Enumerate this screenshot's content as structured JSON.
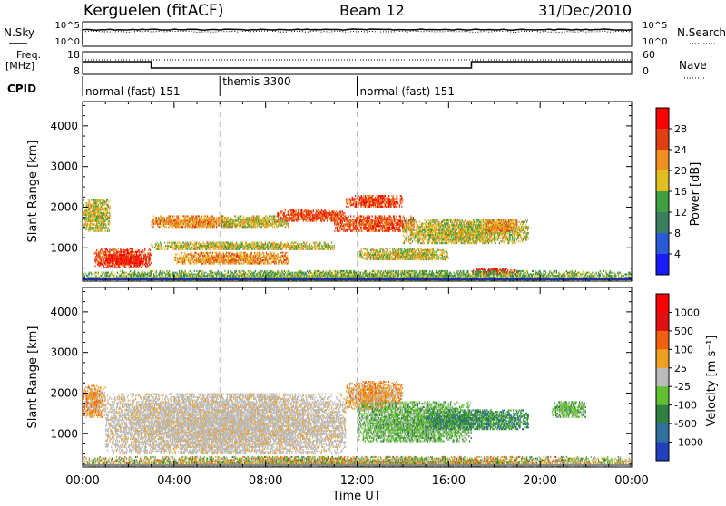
{
  "header": {
    "title": "Kerguelen (fitACF)",
    "beam": "Beam 12",
    "date": "31/Dec/2010"
  },
  "top_panels": {
    "nsky_label": "N.Sky",
    "nsearch_label": "N.Search",
    "freq_label_line1": "Freq.",
    "freq_label_line2": "[MHz]",
    "nave_label": "Nave",
    "cpid_label": "CPID",
    "left_ticks_noise": [
      "10^5",
      "10^0"
    ],
    "right_ticks_noise": [
      "10^5",
      "10^0"
    ],
    "left_ticks_freq": [
      "18",
      "8"
    ],
    "right_ticks_freq": [
      "60",
      "0"
    ]
  },
  "cpid_segments": [
    {
      "label": "normal (fast) 151",
      "start": 0,
      "end": 6
    },
    {
      "label": "themis 3300",
      "start": 6,
      "end": 12
    },
    {
      "label": "normal (fast) 151",
      "start": 12,
      "end": 24
    }
  ],
  "chart_data": [
    {
      "type": "heatmap",
      "panel": "power",
      "ylabel": "Slant Range [km]",
      "xlabel": "Time UT",
      "xlim": [
        0,
        24
      ],
      "ylim": [
        180,
        4600
      ],
      "x_tick_labels": [
        "00:00",
        "04:00",
        "08:00",
        "12:00",
        "16:00",
        "20:00",
        "00:00"
      ],
      "y_ticks": [
        1000,
        2000,
        3000,
        4000
      ],
      "colorbar": {
        "label": "Power [dB]",
        "ticks": [
          "28",
          "24",
          "20",
          "16",
          "12",
          "8",
          "4"
        ],
        "colors": [
          "#1a1aff",
          "#2a5ad8",
          "#3a8060",
          "#40a040",
          "#e0c020",
          "#f09020",
          "#e04010",
          "#ff0000"
        ]
      },
      "echo_regions": [
        {
          "t0": 0.0,
          "t1": 1.2,
          "r0": 1400,
          "r1": 2200,
          "level": 4
        },
        {
          "t0": 0.5,
          "t1": 3.0,
          "r0": 500,
          "r1": 1000,
          "level": 6
        },
        {
          "t0": 1.0,
          "t1": 2.8,
          "r0": 600,
          "r1": 850,
          "level": 7
        },
        {
          "t0": 3.0,
          "t1": 6.5,
          "r0": 1500,
          "r1": 1800,
          "level": 5
        },
        {
          "t0": 3.0,
          "t1": 11.0,
          "r0": 950,
          "r1": 1150,
          "level": 4
        },
        {
          "t0": 4.0,
          "t1": 9.0,
          "r0": 600,
          "r1": 900,
          "level": 5
        },
        {
          "t0": 6.0,
          "t1": 9.0,
          "r0": 1500,
          "r1": 1800,
          "level": 4
        },
        {
          "t0": 8.5,
          "t1": 11.5,
          "r0": 1650,
          "r1": 1950,
          "level": 6
        },
        {
          "t0": 11.0,
          "t1": 14.5,
          "r0": 1400,
          "r1": 1800,
          "level": 6
        },
        {
          "t0": 11.5,
          "t1": 14.0,
          "r0": 2000,
          "r1": 2300,
          "level": 6
        },
        {
          "t0": 12.0,
          "t1": 16.0,
          "r0": 700,
          "r1": 1000,
          "level": 4
        },
        {
          "t0": 14.0,
          "t1": 19.5,
          "r0": 1100,
          "r1": 1700,
          "level": 4
        },
        {
          "t0": 17.5,
          "t1": 19.0,
          "r0": 1400,
          "r1": 1700,
          "level": 5
        },
        {
          "t0": 17.0,
          "t1": 19.0,
          "r0": 350,
          "r1": 500,
          "level": 7
        },
        {
          "t0": 0.0,
          "t1": 24.0,
          "r0": 180,
          "r1": 450,
          "level": 3
        }
      ]
    },
    {
      "type": "heatmap",
      "panel": "velocity",
      "ylabel": "Slant Range [km]",
      "xlabel": "Time UT",
      "xlim": [
        0,
        24
      ],
      "ylim": [
        180,
        4600
      ],
      "x_tick_labels": [
        "00:00",
        "04:00",
        "08:00",
        "12:00",
        "16:00",
        "20:00",
        "00:00"
      ],
      "y_ticks": [
        1000,
        2000,
        3000,
        4000
      ],
      "colorbar": {
        "label": "Velocity [m s⁻¹]",
        "ticks": [
          "1000",
          "500",
          "100",
          "25",
          "-25",
          "-100",
          "-500",
          "-1000"
        ],
        "colors": [
          "#2040c0",
          "#3070a0",
          "#308040",
          "#60c030",
          "#bbbbbb",
          "#f0a020",
          "#f06010",
          "#e01010",
          "#ff0000"
        ]
      },
      "echo_regions": [
        {
          "t0": 0.0,
          "t1": 1.0,
          "r0": 1400,
          "r1": 2200,
          "sign": "neg"
        },
        {
          "t0": 1.0,
          "t1": 11.5,
          "r0": 500,
          "r1": 2000,
          "sign": "zero"
        },
        {
          "t0": 11.5,
          "t1": 14.0,
          "r0": 1600,
          "r1": 2300,
          "sign": "neg"
        },
        {
          "t0": 12.0,
          "t1": 17.0,
          "r0": 800,
          "r1": 1800,
          "sign": "pos"
        },
        {
          "t0": 15.0,
          "t1": 19.5,
          "r0": 1100,
          "r1": 1600,
          "sign": "pos_strong"
        },
        {
          "t0": 20.5,
          "t1": 22.0,
          "r0": 1400,
          "r1": 1800,
          "sign": "pos"
        },
        {
          "t0": 0.0,
          "t1": 24.0,
          "r0": 180,
          "r1": 450,
          "sign": "mixed"
        }
      ]
    }
  ]
}
